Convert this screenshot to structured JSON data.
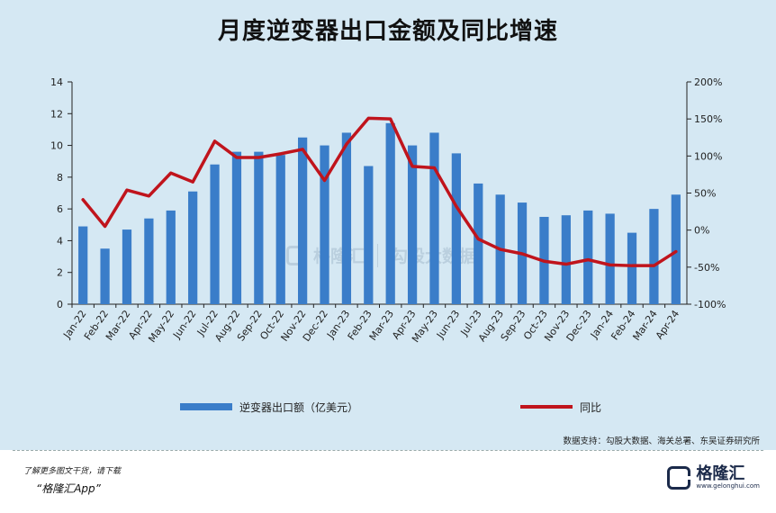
{
  "title": "月度逆变器出口金额及同比增速",
  "chart_data": {
    "type": "bar+line",
    "categories": [
      "Jan-22",
      "Feb-22",
      "Mar-22",
      "Apr-22",
      "May-22",
      "Jun-22",
      "Jul-22",
      "Aug-22",
      "Sep-22",
      "Oct-22",
      "Nov-22",
      "Dec-22",
      "Jan-23",
      "Feb-23",
      "Mar-23",
      "Apr-23",
      "May-23",
      "Jun-23",
      "Jul-23",
      "Aug-23",
      "Sep-23",
      "Oct-23",
      "Nov-23",
      "Dec-23",
      "Jan-24",
      "Feb-24",
      "Mar-24",
      "Apr-24"
    ],
    "series": [
      {
        "name": "逆变器出口额（亿美元）",
        "type": "bar",
        "axis": "left",
        "color": "#3a7dc9",
        "values": [
          4.9,
          3.5,
          4.7,
          5.4,
          5.9,
          7.1,
          8.8,
          9.6,
          9.6,
          9.4,
          10.5,
          10.0,
          10.8,
          8.7,
          11.4,
          10.0,
          10.8,
          9.5,
          7.6,
          6.9,
          6.4,
          5.5,
          5.6,
          5.9,
          5.7,
          4.5,
          6.0,
          6.9
        ]
      },
      {
        "name": "同比",
        "type": "line",
        "axis": "right",
        "color": "#c0141c",
        "values": [
          41,
          5,
          54,
          46,
          77,
          65,
          120,
          98,
          98,
          103,
          109,
          67,
          116,
          151,
          150,
          86,
          84,
          32,
          -12,
          -26,
          -32,
          -42,
          -46,
          -40,
          -47,
          -48,
          -48,
          -29
        ]
      }
    ],
    "y_left": {
      "range": [
        0,
        14
      ],
      "ticks": [
        "0",
        "2",
        "4",
        "6",
        "8",
        "10",
        "12",
        "14"
      ]
    },
    "y_right": {
      "range": [
        -100,
        200
      ],
      "ticks": [
        "-100%",
        "-50%",
        "0%",
        "50%",
        "100%",
        "150%",
        "200%"
      ]
    },
    "legend_position": "bottom",
    "grid": false
  },
  "watermark": {
    "left": "格隆汇",
    "right": "勾股大数据"
  },
  "source": "数据支持：勾股大数据、海关总署、东吴证券研究所",
  "footer": {
    "promo_line1": "了解更多图文干货，请下载",
    "promo_line2": "“格隆汇App”",
    "brand_name": "格隆汇",
    "brand_url": "www.gelonghui.com"
  },
  "colors": {
    "panel_bg": "#d5e8f3",
    "bar": "#3a7dc9",
    "line": "#c0141c"
  }
}
